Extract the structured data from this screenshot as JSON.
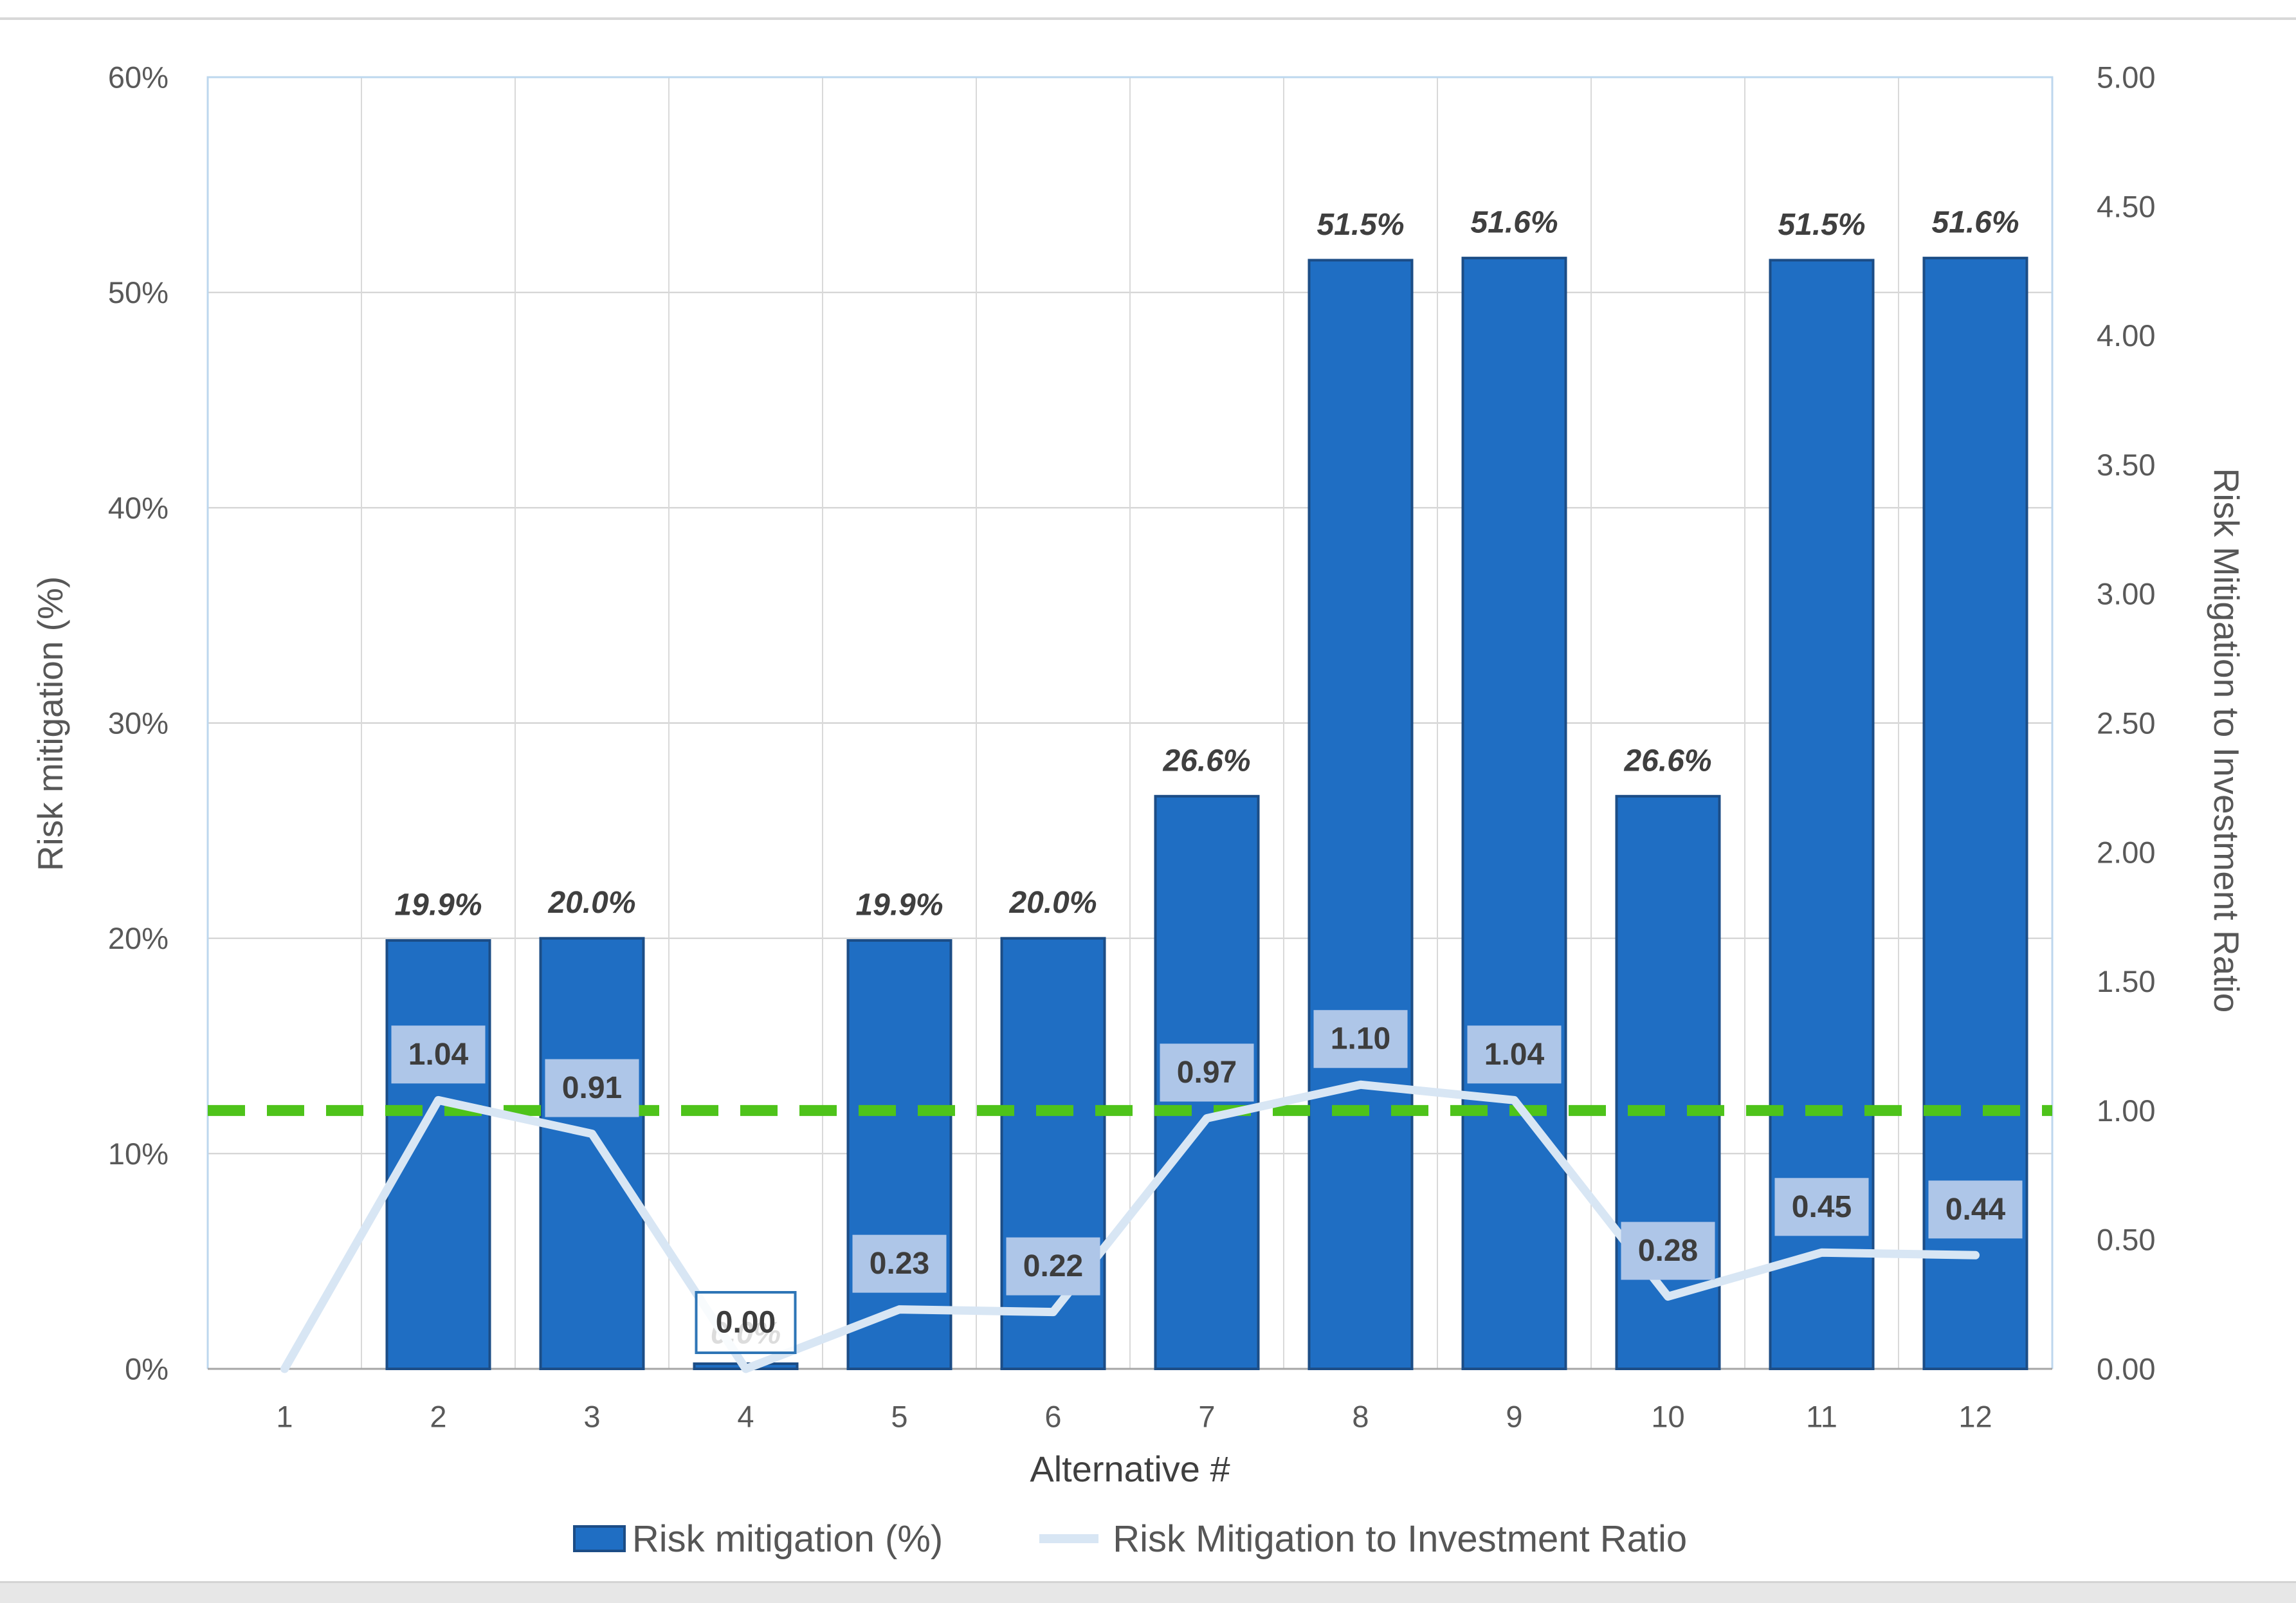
{
  "chart_data": {
    "type": "combo",
    "x_title": "Alternative #",
    "y_left_title": "Risk mitigation (%)",
    "y_right_title": "Risk Mitigation to Investment Ratio",
    "categories": [
      "1",
      "2",
      "3",
      "4",
      "5",
      "6",
      "7",
      "8",
      "9",
      "10",
      "11",
      "12"
    ],
    "y_left_range": [
      0,
      60
    ],
    "y_right_range": [
      0,
      5
    ],
    "y_left_ticks": [
      {
        "v": 0,
        "label": "0%"
      },
      {
        "v": 10,
        "label": "10%"
      },
      {
        "v": 20,
        "label": "20%"
      },
      {
        "v": 30,
        "label": "30%"
      },
      {
        "v": 40,
        "label": "40%"
      },
      {
        "v": 50,
        "label": "50%"
      },
      {
        "v": 60,
        "label": "60%"
      }
    ],
    "y_right_ticks": [
      {
        "v": 0,
        "label": "0.00"
      },
      {
        "v": 0.5,
        "label": "0.50"
      },
      {
        "v": 1,
        "label": "1.00"
      },
      {
        "v": 1.5,
        "label": "1.50"
      },
      {
        "v": 2,
        "label": "2.00"
      },
      {
        "v": 2.5,
        "label": "2.50"
      },
      {
        "v": 3,
        "label": "3.00"
      },
      {
        "v": 3.5,
        "label": "3.50"
      },
      {
        "v": 4,
        "label": "4.00"
      },
      {
        "v": 4.5,
        "label": "4.50"
      },
      {
        "v": 5,
        "label": "5.00"
      }
    ],
    "series": [
      {
        "name": "Risk mitigation (%)",
        "type": "bar",
        "axis": "left",
        "values": [
          0,
          19.9,
          20.0,
          0.0,
          19.9,
          20.0,
          26.6,
          51.5,
          51.6,
          26.6,
          51.5,
          51.6
        ],
        "labels": [
          "",
          "19.9%",
          "20.0%",
          "0.0%",
          "19.9%",
          "20.0%",
          "26.6%",
          "51.5%",
          "51.6%",
          "26.6%",
          "51.5%",
          "51.6%"
        ]
      },
      {
        "name": "Risk Mitigation to Investment Ratio",
        "type": "line",
        "axis": "right",
        "values": [
          0.0,
          1.04,
          0.91,
          0.0,
          0.23,
          0.22,
          0.97,
          1.1,
          1.04,
          0.28,
          0.45,
          0.44
        ],
        "labels": [
          "",
          "1.04",
          "0.91",
          "0.00",
          "0.23",
          "0.22",
          "0.97",
          "1.10",
          "1.04",
          "0.28",
          "0.45",
          "0.44"
        ],
        "selected_label_index": 3
      }
    ],
    "reference_line": {
      "axis": "right",
      "value": 1.0,
      "style": "dashed"
    },
    "grid": true,
    "legend_position": "bottom",
    "legend": [
      {
        "label": "Risk mitigation (%)",
        "marker": "square"
      },
      {
        "label": "Risk Mitigation to Investment Ratio",
        "marker": "line"
      }
    ],
    "colors": {
      "bar_fill": "#1f6ec3",
      "bar_stroke": "#1c4d86",
      "line": "#d8e6f4",
      "line_label_bg": "#aec6e8",
      "line_label_text": "#3d3d3d",
      "bar_label_text": "#3f3f3f",
      "selected_label_border": "#2e75b6",
      "reference_green": "#4ec31a",
      "grid_h": "#cfcfcf",
      "grid_v": "#d9d9d9",
      "axis_line": "#a6a6a6",
      "plot_border": "#bdd7ee",
      "tick_text": "#595959",
      "legend_text": "#565656"
    }
  }
}
